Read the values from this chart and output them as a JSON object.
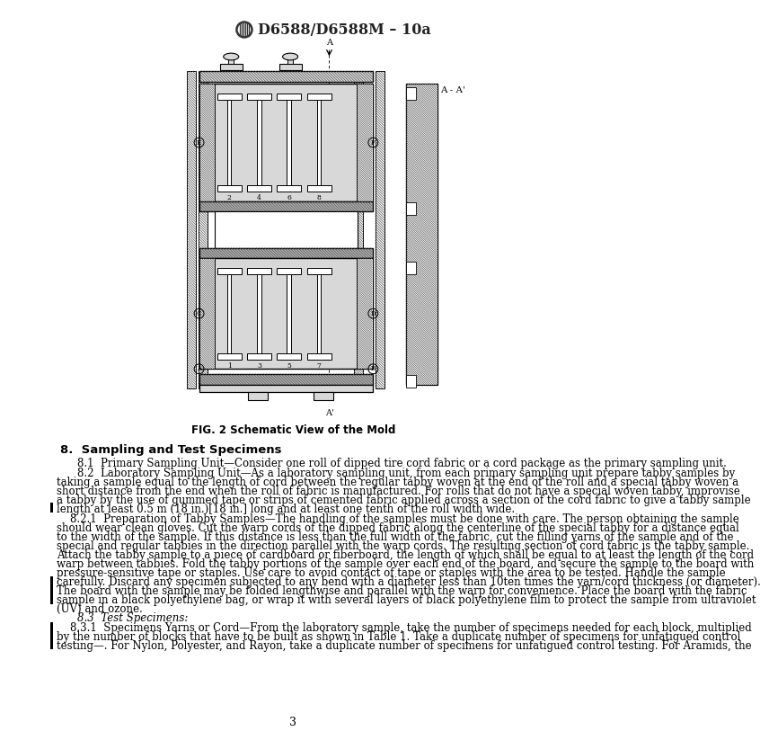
{
  "title": "D6588/D6588M – 10a",
  "fig_caption": "FIG. 2 Schematic View of the Mold",
  "section_header": "8.  Sampling and Test Specimens",
  "page_number": "3",
  "background_color": "#ffffff",
  "para_81": "8.1  Primary Sampling Unit—Consider one roll of dipped tire cord fabric or a cord package as the primary sampling unit.",
  "para_82_lines": [
    "8.2  Laboratory Sampling Unit—As a laboratory sampling unit, from each primary sampling unit prepare tabby samples by",
    "taking a sample equal to the length of cord between the regular tabby woven at the end of the roll and a special tabby woven a",
    "short distance from the end when the roll of fabric is manufactured. For rolls that do not have a special woven tabby, improvise",
    "a tabby by the use of gummed tape or strips of cemented fabric applied across a section of the cord fabric to give a tabby sample",
    "length at least 0.5 m (18 in.)[18 in.] long and at least one tenth of the roll width wide."
  ],
  "para_821_lines": [
    "    8.2.1  Preparation of Tabby Samples—The handling of the samples must be done with care. The person obtaining the sample",
    "should wear clean gloves. Cut the warp cords of the dipped fabric along the centerline of the special tabby for a distance equal",
    "to the width of the sample. If this distance is less than the full width of the fabric, cut the filling yarns of the sample and of the",
    "special and regular tabbies in the direction parallel with the warp cords. The resulting section of cord fabric is the tabby sample.",
    "Attach the tabby sample to a piece of cardboard or fiberboard, the length of which shall be equal to at least the length of the cord",
    "warp between tabbies. Fold the tabby portions of the sample over each end of the board, and secure the sample to the board with",
    "pressure-sensitive tape or staples. Use care to avoid contact of tape or staples with the area to be tested. Handle the sample",
    "carefully. Discard any specimen subjected to any bend with a diameter less than 10ten times the yarn/cord thickness (or diameter).",
    "The board with the sample may be folded lengthwise and parallel with the warp for convenience. Place the board with the fabric",
    "sample in a black polyethylene bag, or wrap it with several layers of black polyethylene film to protect the sample from ultraviolet",
    "(UV) and ozone."
  ],
  "para_83": "8.3  Test Specimens:",
  "para_831_lines": [
    "    8.3.1  Specimens Yarns or Cord—From the laboratory sample, take the number of specimens needed for each block, multiplied",
    "by the number of blocks that have to be built as shown in Table 1. Take a duplicate number of specimens for unfatigued control",
    "testing—. For Nylon, Polyester, and Rayon, take a duplicate number of specimens for unfatigued control testing. For Aramids, the"
  ],
  "hatch_color": "#555555",
  "light_gray": "#d8d8d8",
  "med_gray": "#b0b0b0",
  "dark_gray": "#888888"
}
